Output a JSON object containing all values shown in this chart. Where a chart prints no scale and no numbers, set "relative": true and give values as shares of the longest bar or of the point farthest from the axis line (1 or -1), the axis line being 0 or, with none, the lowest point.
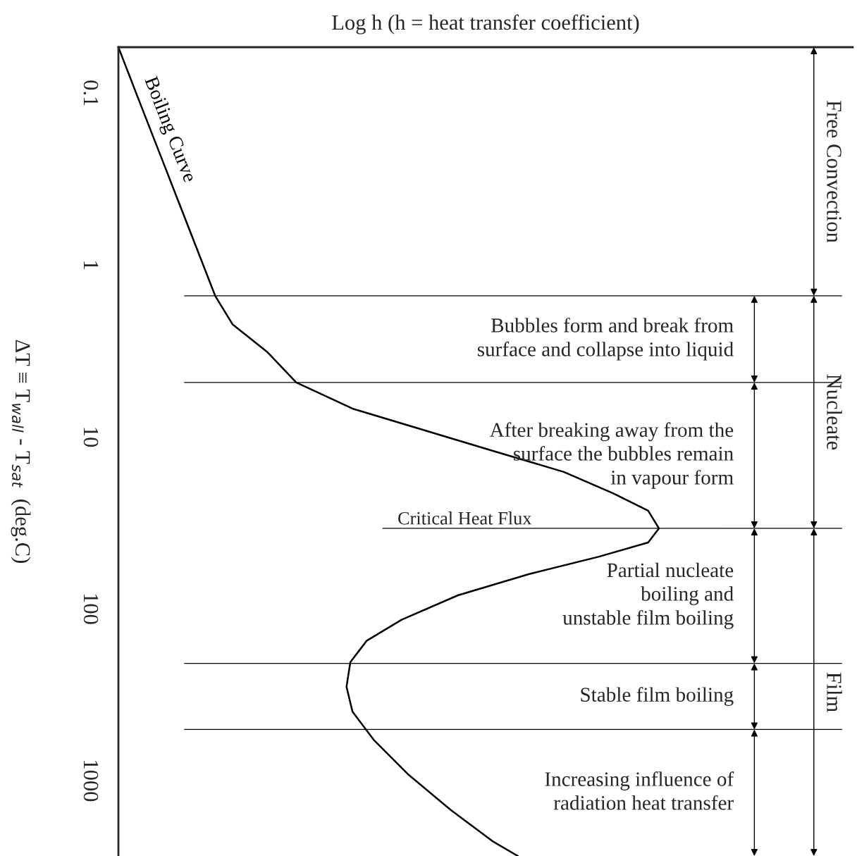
{
  "chart_data": {
    "type": "line",
    "orientation": "horizontal",
    "relative": true,
    "xlabel": "Log h (h = heat transfer coefficient)",
    "ylabel": "ΔT ≡ T$_{wall}$ - T$_{sat}$  (deg.C)",
    "log": "y",
    "ylim": [
      2750,
      0.054
    ],
    "yticks": [
      0.1,
      1,
      10,
      100,
      1000
    ],
    "series": [
      {
        "name": "Boiling Curve",
        "color": "#000000",
        "x": [
          0.054,
          0.108,
          0.305,
          1.51,
          2.21,
          3.22,
          4.83,
          6.85,
          9.1,
          12.1,
          16.0,
          21.3,
          26.9,
          34.1,
          41.2,
          49.8,
          63.0,
          83.6,
          116,
          154,
          205,
          285,
          397,
          578,
          927,
          1486,
          2275,
          2750
        ],
        "values": [
          0,
          0.037,
          0.093,
          0.179,
          0.211,
          0.276,
          0.329,
          0.433,
          0.563,
          0.694,
          0.824,
          0.915,
          0.98,
          1,
          0.98,
          0.889,
          0.759,
          0.628,
          0.524,
          0.459,
          0.429,
          0.422,
          0.433,
          0.472,
          0.537,
          0.615,
          0.694,
          0.739
        ]
      }
    ],
    "ref_lines": [
      {
        "axis": "y",
        "value": 1.51
      },
      {
        "axis": "y",
        "value": 4.83
      },
      {
        "axis": "y",
        "value": 34.1,
        "label": "Critical Heat Flux"
      },
      {
        "axis": "y",
        "value": 208
      },
      {
        "axis": "y",
        "value": 505
      }
    ],
    "annotations": [
      "Free Convection",
      "Nucleate",
      "Film",
      "Bubbles form and break from\nsurface and collapse into liquid",
      "After breaking away from the\nsurface the bubbles remain\nin vapour form",
      "Partial nucleate\nboiling and\nunstable film boiling",
      "Stable film boiling",
      "Increasing influence of\nradiation heat transfer"
    ]
  }
}
